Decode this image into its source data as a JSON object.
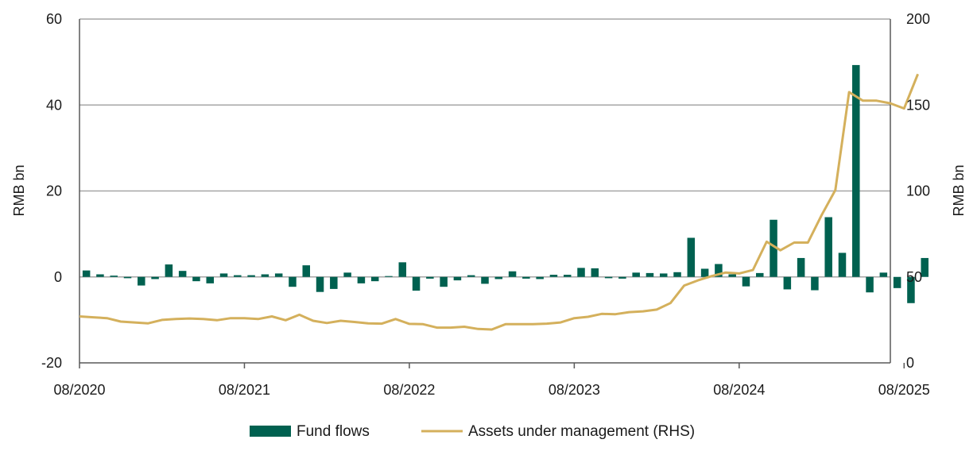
{
  "chart_data": {
    "type": "bar+line",
    "title": "",
    "x_tick_labels": [
      "08/2020",
      "08/2021",
      "08/2022",
      "08/2023",
      "08/2024",
      "08/2025"
    ],
    "x_start": "08/2020",
    "x_end": "08/2025",
    "ylabel_left": "RMB bn",
    "ylabel_right": "RMB bn",
    "y_left_range": [
      -20,
      60
    ],
    "y_left_ticks": [
      -20,
      0,
      20,
      40,
      60
    ],
    "y_right_range": [
      0,
      200
    ],
    "y_right_ticks": [
      0,
      50,
      100,
      150,
      200
    ],
    "grid": true,
    "legend_position": "bottom",
    "colors": {
      "bars": "#006150",
      "line": "#d4b05c",
      "grid": "#a6a6a6",
      "axis": "#595959"
    },
    "series": [
      {
        "name": "Fund flows",
        "type": "bar",
        "axis": "left",
        "values": [
          1.5,
          0.6,
          0.3,
          -0.3,
          -2.0,
          -0.5,
          2.9,
          1.4,
          -1.0,
          -1.5,
          0.8,
          0.4,
          0.4,
          0.6,
          0.8,
          -2.3,
          2.7,
          -3.5,
          -2.8,
          1.0,
          -1.5,
          -1.0,
          0.2,
          3.4,
          -3.2,
          -0.4,
          -2.3,
          -0.8,
          0.4,
          -1.6,
          -0.5,
          1.3,
          -0.4,
          -0.5,
          0.5,
          0.5,
          2.1,
          2.0,
          -0.3,
          -0.4,
          1.0,
          0.9,
          0.8,
          1.1,
          9.1,
          1.9,
          3.0,
          0.6,
          -2.2,
          0.9,
          13.3,
          -2.9,
          4.4,
          -3.1,
          13.9,
          5.6,
          49.3,
          -3.6,
          1.0,
          -2.6,
          -6.1,
          4.4
        ]
      },
      {
        "name": "Assets under management (RHS)",
        "type": "line",
        "axis": "right",
        "values": [
          27,
          26.5,
          26,
          24,
          23.5,
          23,
          25,
          25.5,
          25.8,
          25.5,
          24.8,
          26,
          26,
          25.5,
          27,
          24.8,
          28,
          24.5,
          23.2,
          24.5,
          23.8,
          23,
          22.8,
          25.5,
          22.7,
          22.5,
          20.5,
          20.5,
          21,
          19.7,
          19.4,
          22.5,
          22.5,
          22.5,
          22.8,
          23.5,
          26,
          26.8,
          28.5,
          28.3,
          29.5,
          30,
          31,
          34.8,
          45,
          48,
          50.5,
          52.5,
          52,
          54,
          70.5,
          65.5,
          70,
          70,
          86,
          100.5,
          157.5,
          152.5,
          152.5,
          151,
          148,
          168
        ]
      }
    ]
  }
}
